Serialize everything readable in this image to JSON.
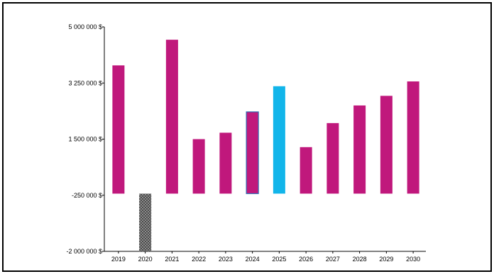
{
  "chart_data": {
    "type": "bar",
    "title": "",
    "xlabel": "",
    "ylabel": "",
    "categories": [
      "2019",
      "2020",
      "2021",
      "2022",
      "2023",
      "2024",
      "2025",
      "2026",
      "2027",
      "2028",
      "2029",
      "2030"
    ],
    "values": [
      3800000,
      -2000000,
      4600000,
      1500000,
      1700000,
      2350000,
      3150000,
      1250000,
      2000000,
      2550000,
      2850000,
      3300000
    ],
    "bar_styles": [
      "solid",
      "dotted-pattern",
      "solid",
      "solid",
      "solid",
      "solid-outlined",
      "solid",
      "solid",
      "solid",
      "solid",
      "solid",
      "solid"
    ],
    "bar_colors": [
      "#C0187C",
      "#7a7a7a",
      "#C0187C",
      "#C0187C",
      "#C0187C",
      "#C0187C",
      "#12B5EA",
      "#C0187C",
      "#C0187C",
      "#C0187C",
      "#C0187C",
      "#C0187C"
    ],
    "outline_color": "#2E6DB4",
    "y_ticks": [
      {
        "value": 5000000,
        "label": "5 000 000 $"
      },
      {
        "value": 3250000,
        "label": "3 250 000 $"
      },
      {
        "value": 1500000,
        "label": "1 500 000 $"
      },
      {
        "value": -250000,
        "label": "-250 000 $"
      },
      {
        "value": -2000000,
        "label": "-2 000 000 $"
      }
    ],
    "ylim": [
      -2000000,
      5000000
    ],
    "baseline_value": -200000,
    "grid": false,
    "legend": "none"
  }
}
